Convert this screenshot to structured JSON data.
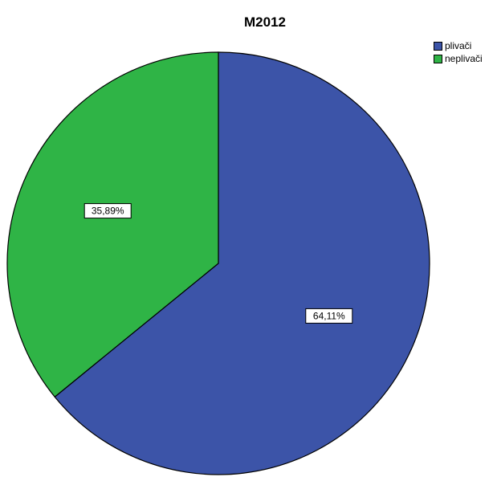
{
  "chart_data": {
    "type": "pie",
    "title": "M2012",
    "categories": [
      "plivači",
      "neplivači"
    ],
    "values": [
      64.11,
      35.89
    ],
    "data_labels": [
      "64,11%",
      "35,89%"
    ],
    "colors": [
      "#3c54a8",
      "#2fb446"
    ],
    "legend_placement": "top-right",
    "start_angle_deg": 0,
    "direction": "clockwise"
  }
}
